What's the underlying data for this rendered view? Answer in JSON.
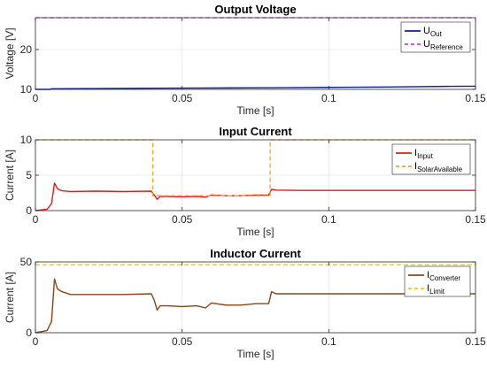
{
  "chart_data": [
    {
      "type": "line",
      "title": "Output Voltage",
      "xlabel": "Time [s]",
      "ylabel": "Voltage [V]",
      "xlim": [
        0,
        0.15
      ],
      "ylim": [
        10,
        28
      ],
      "xticks": [
        0,
        0.05,
        0.1,
        0.15
      ],
      "xtick_labels": [
        "0",
        "0.05",
        "0.1",
        "0.15"
      ],
      "yticks": [
        10,
        20
      ],
      "ytick_labels": [
        "10",
        "20"
      ],
      "grid": true,
      "legend_position": "top-right",
      "series": [
        {
          "name": "U",
          "name_sub": "Out",
          "color": "#0b1cb8",
          "style": "solid",
          "x": [
            0,
            0.005,
            0.0055,
            0.02,
            0.04,
            0.06,
            0.08,
            0.1,
            0.12,
            0.14,
            0.15
          ],
          "y": [
            10.0,
            10.0,
            10.15,
            10.2,
            10.3,
            10.35,
            10.4,
            10.5,
            10.6,
            10.75,
            10.8
          ]
        },
        {
          "name": "U",
          "name_sub": "Reference",
          "color": "#c248e0",
          "style": "dashed",
          "x": [
            0,
            0.15
          ],
          "y": [
            28,
            28
          ]
        }
      ]
    },
    {
      "type": "line",
      "title": "Input Current",
      "xlabel": "Time [s]",
      "ylabel": "Current [A]",
      "xlim": [
        0,
        0.15
      ],
      "ylim": [
        0,
        10
      ],
      "xticks": [
        0,
        0.05,
        0.1,
        0.15
      ],
      "xtick_labels": [
        "0",
        "0.05",
        "0.1",
        "0.15"
      ],
      "yticks": [
        0,
        5,
        10
      ],
      "ytick_labels": [
        "0",
        "5",
        "10"
      ],
      "grid": true,
      "legend_position": "top-right",
      "series": [
        {
          "name": "I",
          "name_sub": "Input",
          "color": "#e01b1b",
          "style": "solid",
          "x": [
            0,
            0.004,
            0.0055,
            0.0065,
            0.0075,
            0.009,
            0.012,
            0.02,
            0.03,
            0.0395,
            0.0405,
            0.0415,
            0.0425,
            0.045,
            0.05,
            0.055,
            0.058,
            0.06,
            0.065,
            0.07,
            0.075,
            0.0795,
            0.0805,
            0.082,
            0.09,
            0.1,
            0.12,
            0.15
          ],
          "y": [
            0,
            0.2,
            1.0,
            3.9,
            3.1,
            2.8,
            2.7,
            2.75,
            2.7,
            2.75,
            2.2,
            1.6,
            2.0,
            2.0,
            1.95,
            2.0,
            1.9,
            2.2,
            2.1,
            2.1,
            2.2,
            2.2,
            3.0,
            2.9,
            2.85,
            2.85,
            2.85,
            2.85
          ]
        },
        {
          "name": "I",
          "name_sub": "SolarAvailable",
          "color": "#f5a623",
          "style": "dashed",
          "x": [
            0,
            0.04,
            0.04,
            0.08,
            0.08,
            0.15
          ],
          "y": [
            10,
            10,
            2.1,
            2.1,
            10,
            10
          ]
        }
      ]
    },
    {
      "type": "line",
      "title": "Inductor Current",
      "xlabel": "Time [s]",
      "ylabel": "Current [A]",
      "xlim": [
        0,
        0.15
      ],
      "ylim": [
        0,
        50
      ],
      "xticks": [
        0,
        0.05,
        0.1,
        0.15
      ],
      "xtick_labels": [
        "0",
        "0.05",
        "0.1",
        "0.15"
      ],
      "yticks": [
        0,
        50
      ],
      "ytick_labels": [
        "0",
        "50"
      ],
      "grid": true,
      "legend_position": "top-right",
      "series": [
        {
          "name": "I",
          "name_sub": "Converter",
          "color": "#8b4513",
          "style": "solid",
          "x": [
            0,
            0.004,
            0.0055,
            0.0065,
            0.0075,
            0.009,
            0.012,
            0.02,
            0.03,
            0.0395,
            0.0405,
            0.0415,
            0.0425,
            0.045,
            0.05,
            0.055,
            0.058,
            0.06,
            0.065,
            0.07,
            0.075,
            0.0795,
            0.0805,
            0.082,
            0.09,
            0.1,
            0.12,
            0.15
          ],
          "y": [
            0,
            1.5,
            8,
            38,
            31,
            29,
            27,
            27,
            27,
            27.5,
            23,
            16,
            19,
            19,
            18.5,
            19,
            17.5,
            21,
            19.5,
            19.5,
            20.5,
            20.5,
            29,
            27.5,
            27.5,
            27.5,
            27.5,
            27.5
          ]
        },
        {
          "name": "I",
          "name_sub": "Limit",
          "color": "#f5c518",
          "style": "dashed",
          "x": [
            0,
            0.15
          ],
          "y": [
            48,
            48
          ]
        }
      ]
    }
  ]
}
